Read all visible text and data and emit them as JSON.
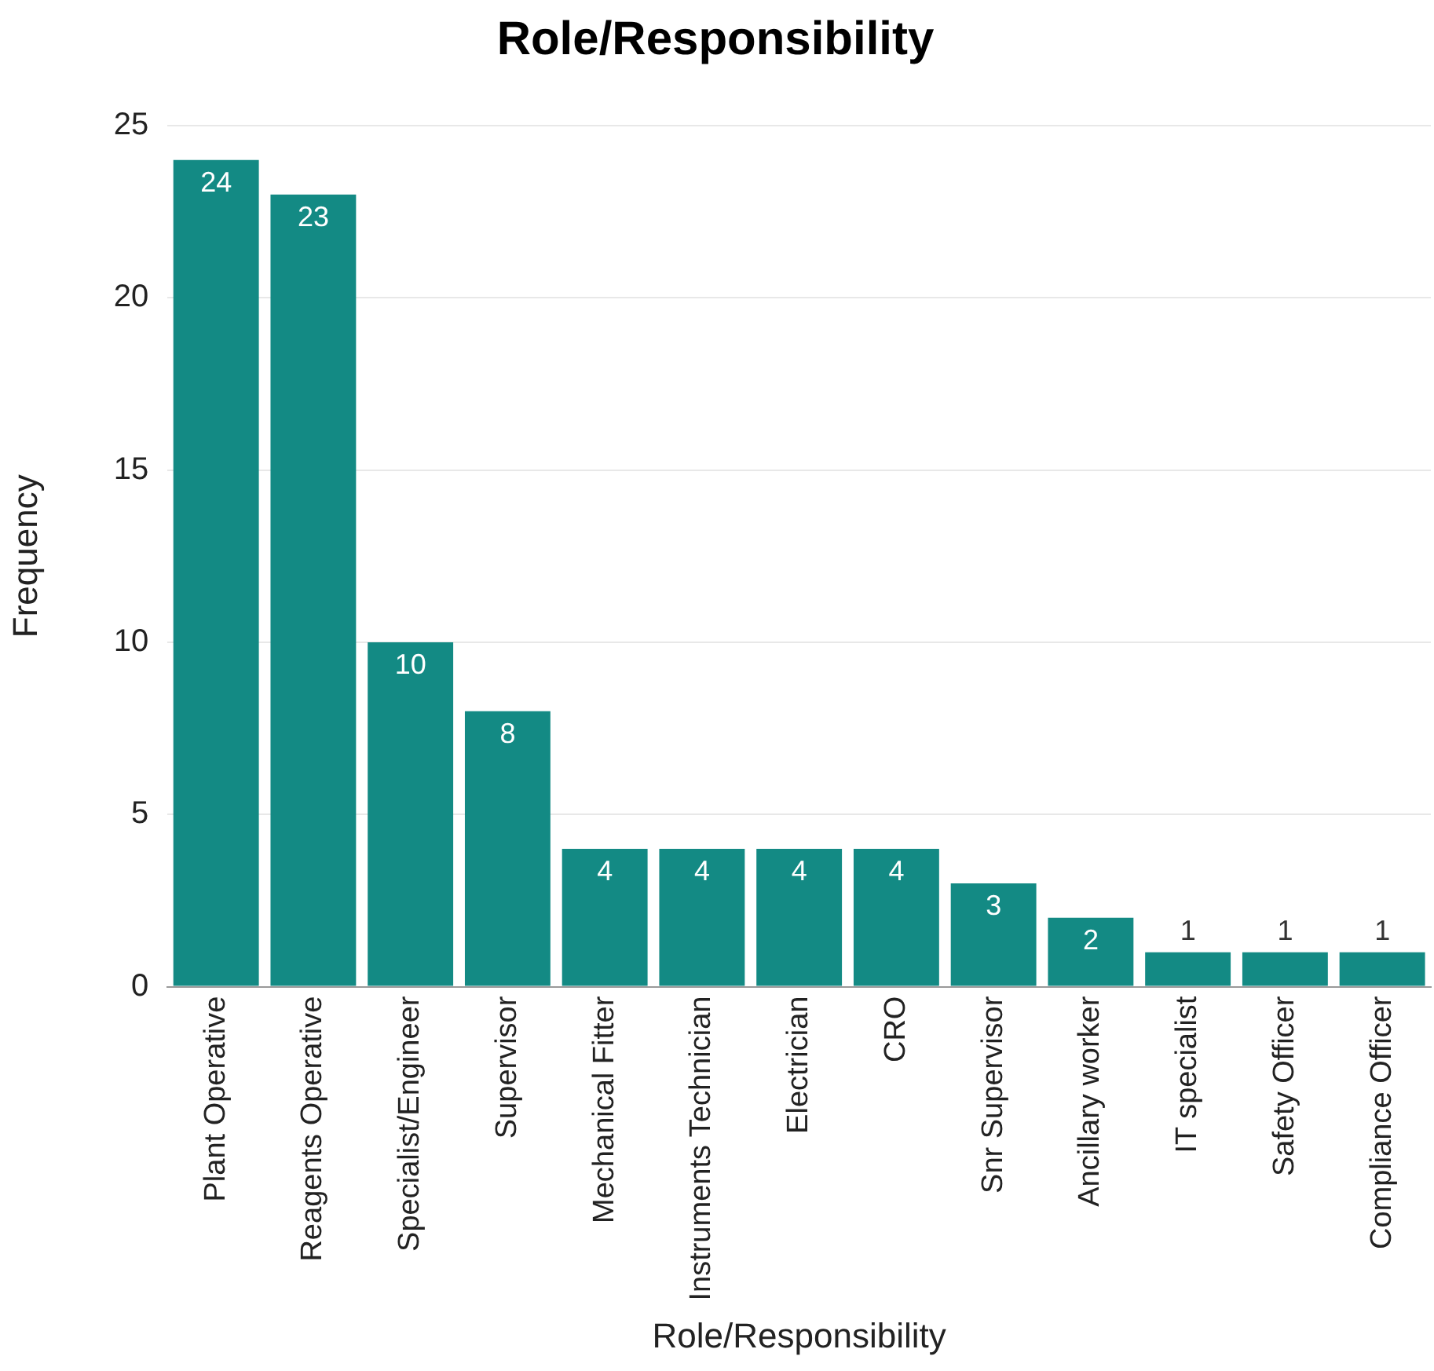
{
  "chart_data": {
    "type": "bar",
    "title": "Role/Responsibility",
    "xlabel": "Role/Responsibility",
    "ylabel": "Frequency",
    "categories": [
      "Plant Operative",
      "Reagents Operative",
      "Specialist/Engineer",
      "Supervisor",
      "Mechanical Fitter",
      "Instruments Technician",
      "Electrician",
      "CRO",
      "Snr Supervisor",
      "Ancillary worker",
      "IT specialist",
      "Safety Officer",
      "Compliance Officer"
    ],
    "values": [
      24,
      23,
      10,
      8,
      4,
      4,
      4,
      4,
      3,
      2,
      1,
      1,
      1
    ],
    "color": "#138a84",
    "ylim": [
      0,
      25
    ],
    "yticks": [
      0,
      5,
      10,
      15,
      20,
      25
    ],
    "grid": "y",
    "legend": false,
    "data_labels": true
  }
}
